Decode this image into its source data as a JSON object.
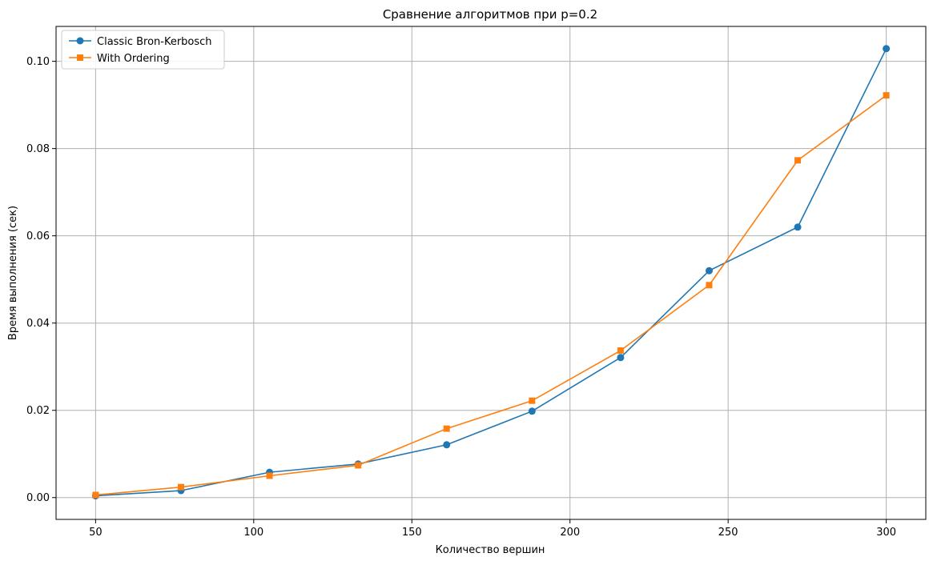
{
  "chart_data": {
    "type": "line",
    "title": "Сравнение алгоритмов при p=0.2",
    "xlabel": "Количество вершин",
    "ylabel": "Время выполнения (сек)",
    "xlim": [
      37.5,
      312.5
    ],
    "ylim": [
      -0.005,
      0.108
    ],
    "xticks": [
      50,
      100,
      150,
      200,
      250,
      300
    ],
    "xtick_labels": [
      "50",
      "100",
      "150",
      "200",
      "250",
      "300"
    ],
    "yticks": [
      0.0,
      0.02,
      0.04,
      0.06,
      0.08,
      0.1
    ],
    "ytick_labels": [
      "0.00",
      "0.02",
      "0.04",
      "0.06",
      "0.08",
      "0.10"
    ],
    "grid": true,
    "legend_position": "top-left",
    "x": [
      50,
      77,
      105,
      133,
      161,
      188,
      216,
      244,
      272,
      300
    ],
    "series": [
      {
        "name": "Classic Bron-Kerbosch",
        "color": "#1f77b4",
        "marker": "circle",
        "values": [
          0.0004,
          0.0016,
          0.0058,
          0.0077,
          0.0121,
          0.0198,
          0.0321,
          0.052,
          0.062,
          0.1029
        ]
      },
      {
        "name": "With Ordering",
        "color": "#ff7f0e",
        "marker": "square",
        "values": [
          0.0006,
          0.0024,
          0.005,
          0.0074,
          0.0158,
          0.0222,
          0.0337,
          0.0487,
          0.0773,
          0.0922
        ]
      }
    ]
  }
}
